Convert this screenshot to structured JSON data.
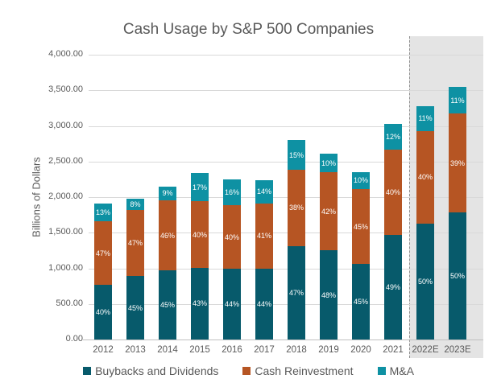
{
  "chart_data": {
    "type": "bar",
    "subtype": "stacked",
    "title": "Cash Usage by S&P 500 Companies",
    "ylabel": "Billions of Dollars",
    "xlabel": "",
    "ylim": [
      0,
      4000
    ],
    "grid": true,
    "legend_position": "bottom",
    "y_ticks": [
      {
        "label": "0.00",
        "value": 0
      },
      {
        "label": "500.00",
        "value": 500
      },
      {
        "label": "1,000.00",
        "value": 1000
      },
      {
        "label": "1,500.00",
        "value": 1500
      },
      {
        "label": "2,000.00",
        "value": 2000
      },
      {
        "label": "2,500.00",
        "value": 2500
      },
      {
        "label": "3,000.00",
        "value": 3000
      },
      {
        "label": "3,500.00",
        "value": 3500
      },
      {
        "label": "4,000.00",
        "value": 4000
      }
    ],
    "categories": [
      "2012",
      "2013",
      "2014",
      "2015",
      "2016",
      "2017",
      "2018",
      "2019",
      "2020",
      "2021",
      "2022E",
      "2023E"
    ],
    "forecast_categories": [
      "2022E",
      "2023E"
    ],
    "series": [
      {
        "name": "Buybacks and Dividends",
        "color": "#075a6b",
        "values": [
          764,
          891,
          968,
          1006,
          990,
          990,
          1316,
          1253,
          1058,
          1470,
          1630,
          1780
        ],
        "percent_labels": [
          "40%",
          "45%",
          "45%",
          "43%",
          "44%",
          "44%",
          "47%",
          "48%",
          "45%",
          "49%",
          "50%",
          "50%"
        ]
      },
      {
        "name": "Cash Reinvestment",
        "color": "#b65523",
        "values": [
          898,
          931,
          989,
          936,
          900,
          925,
          1064,
          1096,
          1057,
          1200,
          1300,
          1390
        ],
        "percent_labels": [
          "47%",
          "47%",
          "46%",
          "40%",
          "40%",
          "41%",
          "38%",
          "42%",
          "45%",
          "40%",
          "40%",
          "39%"
        ]
      },
      {
        "name": "M&A",
        "color": "#0e91a3",
        "values": [
          248,
          158,
          194,
          398,
          360,
          320,
          420,
          261,
          235,
          360,
          350,
          380
        ],
        "percent_labels": [
          "13%",
          "8%",
          "9%",
          "17%",
          "16%",
          "14%",
          "15%",
          "10%",
          "10%",
          "12%",
          "11%",
          "11%"
        ]
      }
    ],
    "estimated_totals": [
      1910,
      1980,
      2151,
      2340,
      2250,
      2235,
      2800,
      2610,
      2350,
      3030,
      3280,
      3550
    ],
    "colors": {
      "text": "#595959",
      "gridline": "#d9d9d9",
      "axis_line": "#bfbfbf",
      "forecast_band": "#e4e4e4",
      "forecast_divider": "#8f8f8f",
      "segment_label": "#ffffff"
    }
  }
}
